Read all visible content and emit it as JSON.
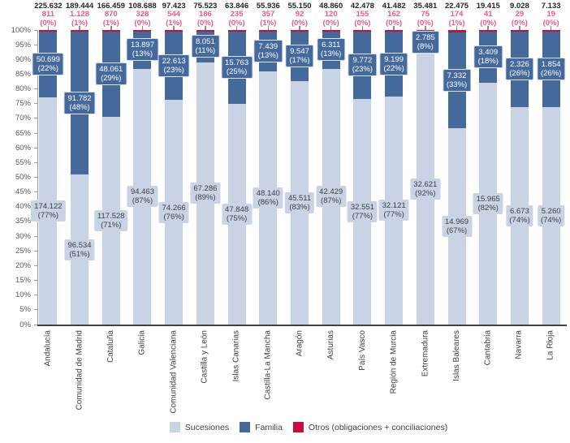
{
  "chart_data": {
    "type": "bar",
    "stacked": true,
    "percent_stacked": true,
    "title": "",
    "xlabel": "",
    "ylabel": "",
    "ylim": [
      0,
      100
    ],
    "ytick_step": 5,
    "ytick_suffix": "%",
    "grid": false,
    "legend_position": "bottom",
    "categories": [
      "Andalucía",
      "Comunidad de Madrid",
      "Cataluña",
      "Galicia",
      "Comunidad Valenciana",
      "Castilla y León",
      "Islas Canarias",
      "Castilla-La Mancha",
      "Aragón",
      "Asturias",
      "País Vasco",
      "Región de Murcia",
      "Extremadura",
      "Islas Baleares",
      "Cantabria",
      "Navarra",
      "La Rioja"
    ],
    "totals": [
      225632,
      189444,
      166459,
      108688,
      97423,
      75523,
      63846,
      55936,
      55150,
      48860,
      42478,
      41482,
      35481,
      22475,
      19415,
      9028,
      7133
    ],
    "series": [
      {
        "name": "Sucesiones",
        "color": "#C8D3E5",
        "values": [
          174122,
          96534,
          117528,
          94463,
          74266,
          67286,
          47848,
          48140,
          45511,
          42429,
          32551,
          32121,
          32621,
          14969,
          15965,
          6673,
          5260
        ],
        "pct_labels": [
          77,
          51,
          71,
          87,
          76,
          89,
          75,
          86,
          83,
          87,
          77,
          77,
          92,
          67,
          82,
          74,
          74
        ]
      },
      {
        "name": "Familia",
        "color": "#46699B",
        "values": [
          50699,
          91782,
          48061,
          13897,
          22613,
          8051,
          15763,
          7439,
          9547,
          6311,
          9772,
          9199,
          2785,
          7332,
          3409,
          2326,
          1854
        ],
        "pct_labels": [
          22,
          48,
          29,
          13,
          23,
          11,
          25,
          13,
          17,
          13,
          23,
          22,
          8,
          33,
          18,
          26,
          26
        ]
      },
      {
        "name": "Otros (obligaciones + conciliaciones)",
        "color": "#C4103A",
        "values": [
          811,
          1128,
          870,
          328,
          544,
          186,
          235,
          357,
          92,
          120,
          155,
          162,
          75,
          174,
          41,
          29,
          19
        ],
        "pct_labels": [
          0,
          1,
          1,
          0,
          1,
          0,
          0,
          1,
          0,
          0,
          0,
          0,
          0,
          1,
          0,
          0,
          0
        ]
      }
    ],
    "label_colors": {
      "total": "#262626",
      "otros": "#E75A8B"
    }
  }
}
